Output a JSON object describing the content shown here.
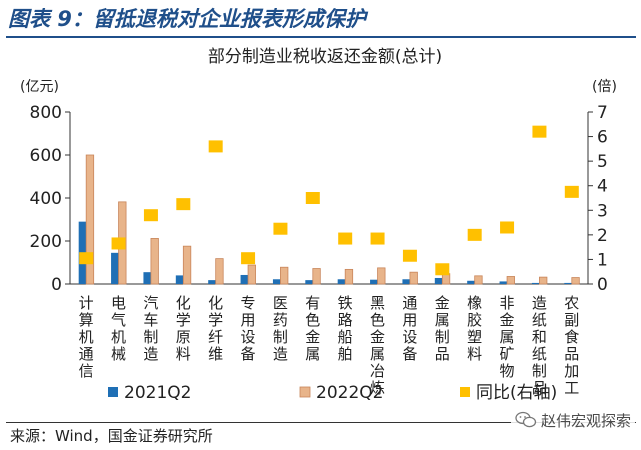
{
  "figure_title": "图表 9：留抵退税对企业报表形成保护",
  "source": "来源：Wind，国金证券研究所",
  "watermark": "赵伟宏观探索",
  "colors": {
    "bar_2021": "#1f6fb5",
    "bar_2022": "#e8b48a",
    "bar_2022_edge": "#c8855a",
    "ratio": "#ffc000",
    "title_blue": "#1f4f8a"
  },
  "chart_data": {
    "type": "bar",
    "title": "部分制造业税收返还金额(总计)",
    "ylabel_left": "(亿元)",
    "ylabel_right": "(倍)",
    "ylim_left": [
      0,
      800
    ],
    "yticks_left": [
      0,
      200,
      400,
      600,
      800
    ],
    "ylim_right": [
      0,
      7
    ],
    "yticks_right": [
      0,
      1,
      2,
      3,
      4,
      5,
      6,
      7
    ],
    "categories": [
      "计算机通信",
      "电气机械",
      "汽车制造",
      "化学原料",
      "化学纤维",
      "专用设备",
      "医药制造",
      "有色金属",
      "铁路船舶",
      "黑色金属冶炼",
      "通用设备",
      "金属制品",
      "橡胶塑料",
      "非金属矿物",
      "造纸和纸制品",
      "农副食品加工"
    ],
    "series": [
      {
        "name": "2021Q2",
        "axis": "left",
        "kind": "bar",
        "values": [
          290,
          145,
          55,
          40,
          18,
          42,
          22,
          18,
          22,
          20,
          22,
          28,
          15,
          12,
          5,
          5
        ]
      },
      {
        "name": "2022Q2",
        "axis": "left",
        "kind": "bar",
        "values": [
          600,
          382,
          212,
          176,
          118,
          88,
          78,
          72,
          68,
          75,
          55,
          48,
          38,
          35,
          32,
          30
        ]
      },
      {
        "name": "同比(右轴)",
        "axis": "right",
        "kind": "scatter",
        "values": [
          1.05,
          1.65,
          2.8,
          3.25,
          5.6,
          1.05,
          2.25,
          3.5,
          1.85,
          1.85,
          1.15,
          0.6,
          2.0,
          2.3,
          6.2,
          3.75
        ]
      }
    ],
    "legend_position": "bottom",
    "grid": false
  }
}
